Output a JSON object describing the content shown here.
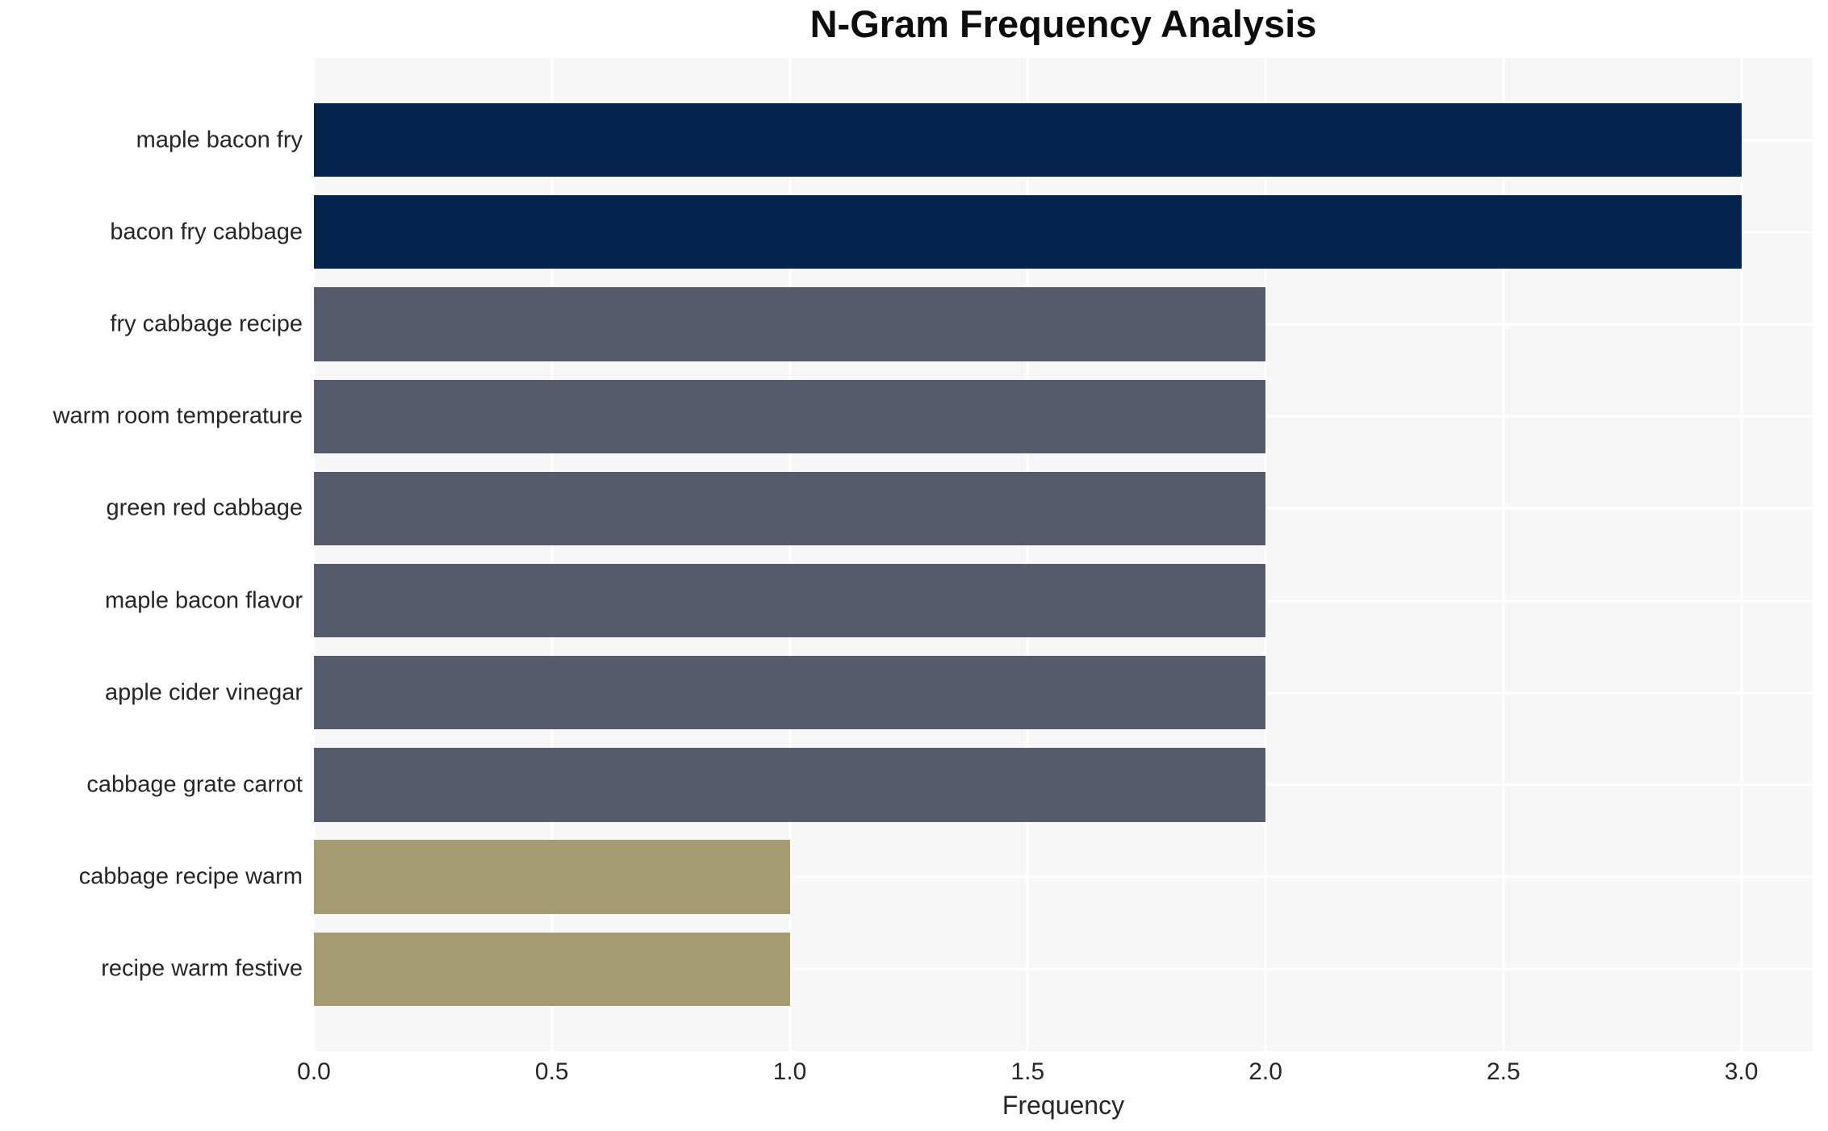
{
  "chart_data": {
    "type": "bar",
    "orientation": "horizontal",
    "title": "N-Gram Frequency Analysis",
    "xlabel": "Frequency",
    "ylabel": "",
    "categories": [
      "maple bacon fry",
      "bacon fry cabbage",
      "fry cabbage recipe",
      "warm room temperature",
      "green red cabbage",
      "maple bacon flavor",
      "apple cider vinegar",
      "cabbage grate carrot",
      "cabbage recipe warm",
      "recipe warm festive"
    ],
    "values": [
      3,
      3,
      2,
      2,
      2,
      2,
      2,
      2,
      1,
      1
    ],
    "bar_colors": [
      "#02234d",
      "#02234d",
      "#565b6b",
      "#565b6b",
      "#565b6b",
      "#565b6b",
      "#565b6b",
      "#565b6b",
      "#a49b70",
      "#a49b70"
    ],
    "colors_by_value": {
      "3": "#02234d",
      "2": "#565b6b",
      "1": "#a49b70"
    },
    "xticks": [
      0.0,
      0.5,
      1.0,
      1.5,
      2.0,
      2.5,
      3.0
    ],
    "xtick_labels": [
      "0.0",
      "0.5",
      "1.0",
      "1.5",
      "2.0",
      "2.5",
      "3.0"
    ],
    "xlim": [
      0,
      3.15
    ],
    "grid": true,
    "grid_color": "#ffffff",
    "plot_bg": "#f7f7f8",
    "legend": false
  }
}
